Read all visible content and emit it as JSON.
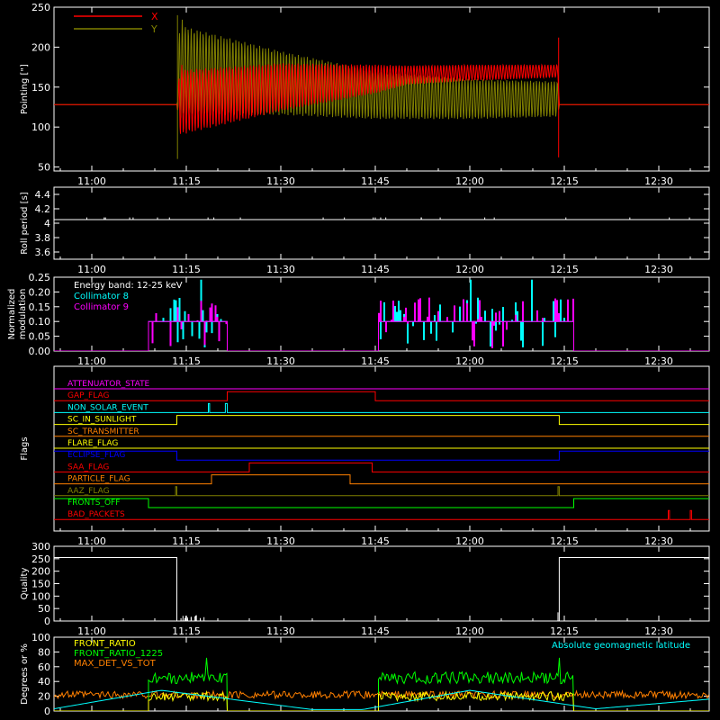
{
  "figure": {
    "background": "#000000",
    "axis_color": "#ffffff"
  },
  "time_axis": {
    "ticks": [
      "11:00",
      "11:15",
      "11:30",
      "11:45",
      "12:00",
      "12:15",
      "12:30"
    ],
    "tick_minutes": [
      660,
      675,
      690,
      705,
      720,
      735,
      750
    ],
    "range_minutes": [
      654,
      758
    ]
  },
  "chart_data": [
    {
      "id": "pointing",
      "type": "line",
      "ylabel": "Pointing [\"]",
      "ylim": [
        45,
        250
      ],
      "yticks": [
        50,
        100,
        150,
        200,
        250
      ],
      "legend": {
        "placement": "top-left",
        "entries": [
          {
            "name": "X",
            "color": "#ff0000"
          },
          {
            "name": "Y",
            "color": "#808000"
          }
        ]
      },
      "series": [
        {
          "name": "X",
          "color": "#ff0000",
          "x": [
            660,
            673.5,
            674,
            675,
            690,
            705,
            710,
            720,
            734,
            734.2,
            758
          ],
          "y_center": [
            128,
            128,
            135,
            132,
            150,
            160,
            165,
            168,
            170,
            128,
            128
          ],
          "amplitude": [
            0,
            0,
            45,
            40,
            30,
            18,
            12,
            10,
            8,
            0,
            0
          ]
        },
        {
          "name": "Y",
          "color": "#808000",
          "x": [
            660,
            673.5,
            674,
            675,
            690,
            705,
            720,
            734,
            734.2,
            758
          ],
          "y_center": [
            128,
            128,
            175,
            170,
            155,
            140,
            135,
            135,
            128,
            128
          ],
          "amplitude": [
            0,
            0,
            65,
            55,
            40,
            30,
            25,
            22,
            0,
            0
          ]
        }
      ]
    },
    {
      "id": "roll",
      "type": "line",
      "ylabel": "Roll period [s]",
      "ylim": [
        3.5,
        4.5
      ],
      "yticks": [
        3.6,
        3.8,
        4.0,
        4.2,
        4.4
      ],
      "series": [
        {
          "name": "Roll period",
          "color": "#ffffff",
          "x": [
            654,
            758
          ],
          "y": [
            4.05,
            4.05
          ]
        }
      ]
    },
    {
      "id": "modulation",
      "type": "line",
      "ylabel": [
        "Normalized",
        "modulation"
      ],
      "ylim": [
        0,
        0.25
      ],
      "yticks": [
        "0.00",
        "0.05",
        "0.10",
        "0.15",
        "0.20",
        "0.25"
      ],
      "annotation": "Energy band: 12-25 keV",
      "legend": {
        "placement": "top-left",
        "entries": [
          {
            "name": "Collimator 8",
            "color": "#00ffff"
          },
          {
            "name": "Collimator 9",
            "color": "#ff00ff"
          }
        ]
      },
      "intervals": [
        [
          669,
          681.5
        ],
        [
          705.5,
          736.5
        ]
      ],
      "baseline": 0.1
    },
    {
      "id": "flags",
      "type": "step",
      "ylabel": "Flags",
      "flags": [
        {
          "name": "ATTENUATOR_STATE",
          "color": "#ff00ff",
          "transitions": []
        },
        {
          "name": "GAP_FLAG",
          "color": "#ff0000",
          "start": 0,
          "transitions": [
            [
              681.5,
              1
            ],
            [
              705,
              0
            ]
          ]
        },
        {
          "name": "NON_SOLAR_EVENT",
          "color": "#00ffff",
          "start": 0,
          "transitions": [
            [
              678.5,
              1
            ],
            [
              678.7,
              0
            ],
            [
              681.2,
              1
            ],
            [
              681.5,
              0
            ]
          ]
        },
        {
          "name": "SC_IN_SUNLIGHT",
          "color": "#ffff00",
          "start": 0,
          "transitions": [
            [
              673.5,
              1
            ],
            [
              734.2,
              0
            ]
          ]
        },
        {
          "name": "SC_TRANSMITTER",
          "color": "#ff8000",
          "transitions": []
        },
        {
          "name": "FLARE_FLAG",
          "color": "#ffff00",
          "transitions": []
        },
        {
          "name": "ECLIPSE_FLAG",
          "color": "#0000ff",
          "start": 1,
          "transitions": [
            [
              673.5,
              0
            ],
            [
              734.2,
              1
            ]
          ]
        },
        {
          "name": "SAA_FLAG",
          "color": "#ff0000",
          "start": 0,
          "transitions": [
            [
              685,
              1
            ],
            [
              704.5,
              0
            ]
          ]
        },
        {
          "name": "PARTICLE_FLAG",
          "color": "#ff8000",
          "start": 0,
          "transitions": [
            [
              679,
              1
            ],
            [
              701,
              0
            ]
          ]
        },
        {
          "name": "AAZ_FLAG",
          "color": "#808000",
          "start": 0,
          "transitions": [
            [
              673.3,
              1
            ],
            [
              673.5,
              0
            ],
            [
              734,
              1
            ],
            [
              734.2,
              0
            ]
          ]
        },
        {
          "name": "FRONTS_OFF",
          "color": "#00ff00",
          "start": 1,
          "transitions": [
            [
              669,
              0
            ],
            [
              736.5,
              1
            ]
          ]
        },
        {
          "name": "BAD_PACKETS",
          "color": "#ff0000",
          "start": 0,
          "transitions": [
            [
              751.5,
              1
            ],
            [
              751.7,
              0
            ],
            [
              755,
              1
            ],
            [
              755.2,
              0
            ]
          ]
        }
      ]
    },
    {
      "id": "quality",
      "type": "step",
      "ylabel": "Quality",
      "ylim": [
        0,
        300
      ],
      "yticks": [
        0,
        50,
        100,
        150,
        200,
        250,
        300
      ],
      "series": [
        {
          "name": "Quality",
          "color": "#ffffff",
          "x": [
            654,
            673.5,
            673.5,
            734.2,
            734.2,
            758
          ],
          "y": [
            255,
            255,
            0,
            0,
            255,
            255
          ]
        }
      ]
    },
    {
      "id": "front",
      "type": "line",
      "ylabel": "Degrees or %",
      "ylim": [
        0,
        100
      ],
      "yticks": [
        0,
        20,
        40,
        60,
        80,
        100
      ],
      "legend": {
        "placement": "top-left",
        "entries": [
          {
            "name": "FRONT_RATIO",
            "color": "#ffff00"
          },
          {
            "name": "FRONT_RATIO_1225",
            "color": "#00ff00"
          },
          {
            "name": "MAX_DET_VS_TOT",
            "color": "#ff8000"
          }
        ]
      },
      "annotation": {
        "text": "Absolute geomagnetic latitude",
        "color": "#00ffff",
        "placement": "top-right"
      },
      "series": [
        {
          "name": "FRONT_RATIO_1225",
          "color": "#00ff00",
          "intervals": [
            [
              669,
              681.5
            ],
            [
              705.5,
              736.5
            ]
          ],
          "level": 45,
          "noise": 8
        },
        {
          "name": "FRONT_RATIO",
          "color": "#ffff00",
          "intervals": [
            [
              669,
              681.5
            ],
            [
              705.5,
              736.5
            ]
          ],
          "level": 20,
          "noise": 6
        },
        {
          "name": "MAX_DET_VS_TOT",
          "color": "#ff8000",
          "level": 22,
          "noise": 5
        },
        {
          "name": "Absolute geomagnetic latitude",
          "color": "#00ffff",
          "x": [
            654,
            671,
            695,
            703,
            720,
            740,
            758
          ],
          "y": [
            3,
            28,
            2,
            2,
            28,
            3,
            16
          ]
        }
      ]
    }
  ]
}
